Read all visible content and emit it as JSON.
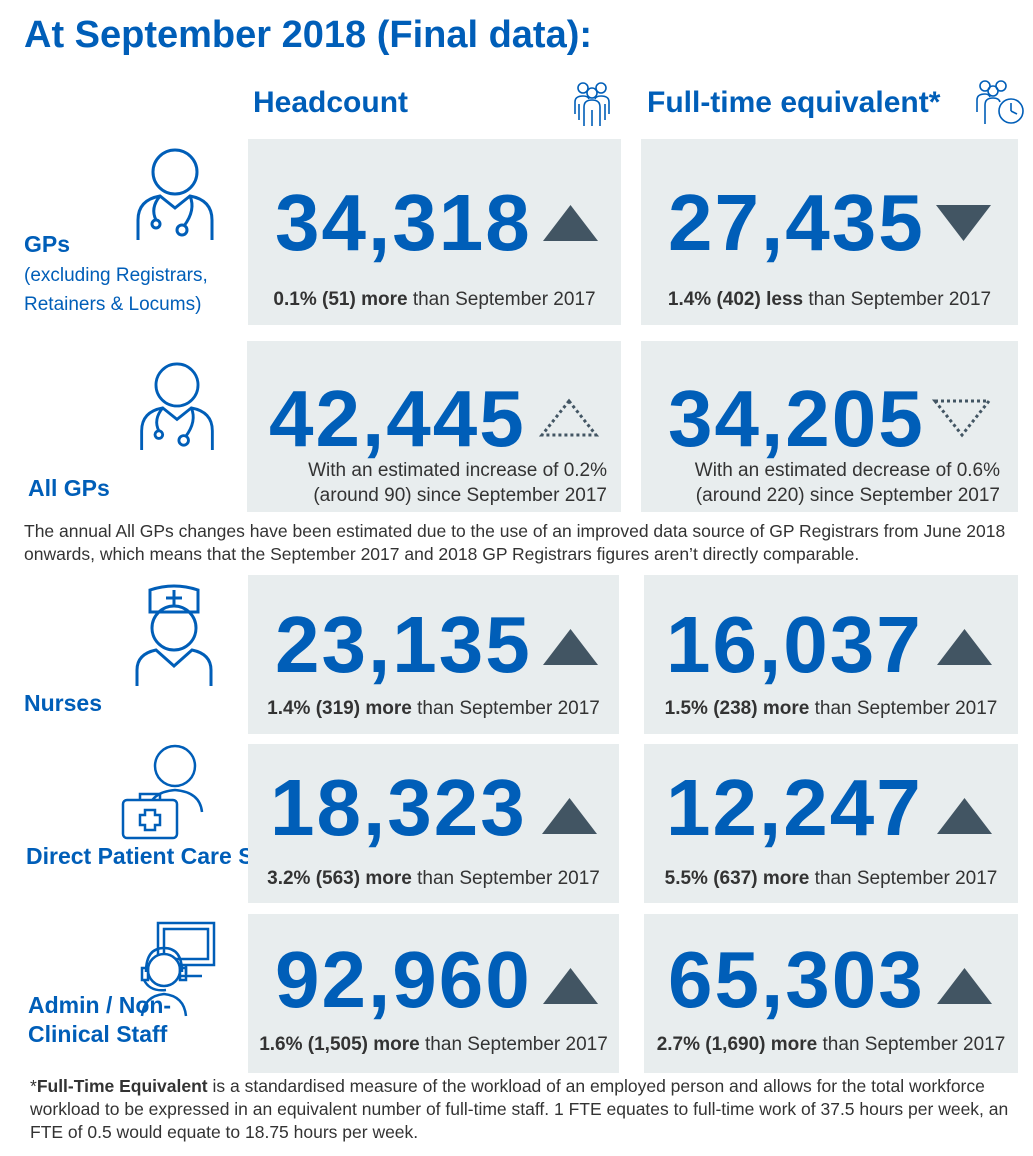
{
  "title": "At September 2018 (Final data):",
  "columns": {
    "headcount": "Headcount",
    "fte": "Full-time equivalent*"
  },
  "colors": {
    "primary": "#005eb8",
    "card": "#e8edee",
    "arrow": "#425563",
    "text": "#333333"
  },
  "rows": [
    {
      "label": "GPs",
      "sublabel": "(excluding Registrars, Retainers & Locums)",
      "icon": "gp-stethoscope-icon",
      "headcount": {
        "value": "34,318",
        "trend": "up-solid",
        "pct": "0.1% (51)",
        "dir": "more",
        "rest": "than September 2017"
      },
      "fte": {
        "value": "27,435",
        "trend": "down-solid",
        "pct": "1.4% (402)",
        "dir": "less",
        "rest": "than September 2017"
      }
    },
    {
      "label": "All GPs",
      "icon": "gp-stethoscope-icon",
      "headcount": {
        "value": "42,445",
        "trend": "up-dotted",
        "line1": "With an estimated increase of 0.2%",
        "line2": "(around 90) since September 2017"
      },
      "fte": {
        "value": "34,205",
        "trend": "down-dotted",
        "line1": "With an estimated decrease of 0.6%",
        "line2": "(around 220) since September 2017"
      }
    },
    {
      "label": "Nurses",
      "icon": "nurse-icon",
      "headcount": {
        "value": "23,135",
        "trend": "up-solid",
        "pct": "1.4% (319)",
        "dir": "more",
        "rest": "than September 2017"
      },
      "fte": {
        "value": "16,037",
        "trend": "up-solid",
        "pct": "1.5% (238)",
        "dir": "more",
        "rest": "than September 2017"
      }
    },
    {
      "label": "Direct Patient Care Staff",
      "icon": "first-aid-staff-icon",
      "headcount": {
        "value": "18,323",
        "trend": "up-solid",
        "pct": "3.2% (563)",
        "dir": "more",
        "rest": "than September 2017"
      },
      "fte": {
        "value": "12,247",
        "trend": "up-solid",
        "pct": "5.5% (637)",
        "dir": "more",
        "rest": "than September 2017"
      }
    },
    {
      "label": "Admin / Non-Clinical Staff",
      "icon": "headset-computer-icon",
      "headcount": {
        "value": "92,960",
        "trend": "up-solid",
        "pct": "1.6% (1,505)",
        "dir": "more",
        "rest": "than September 2017"
      },
      "fte": {
        "value": "65,303",
        "trend": "up-solid",
        "pct": "2.7% (1,690)",
        "dir": "more",
        "rest": "than September 2017"
      }
    }
  ],
  "note": "The annual All GPs changes have been estimated due to the use of an improved data source of GP Registrars from June 2018 onwards, which means that the September 2017 and 2018 GP Registrars figures aren’t directly comparable.",
  "footnote": {
    "prefix": "*",
    "term": "Full-Time Equivalent",
    "text": " is a standardised measure of the workload of an employed person and allows for the total workforce workload to be expressed in an equivalent number of full-time staff. 1 FTE equates to full-time work of 37.5 hours per week, an FTE of 0.5 would equate to 18.75 hours per week."
  }
}
